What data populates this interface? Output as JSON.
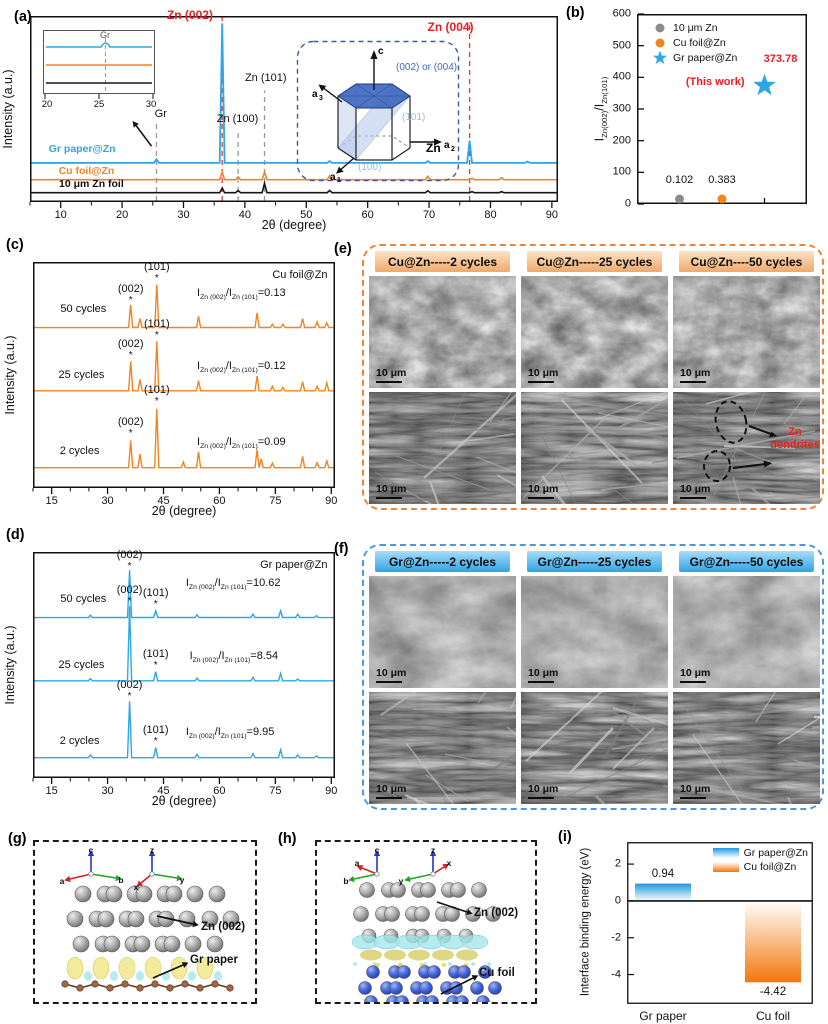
{
  "accent_colors": {
    "blue": "#2EA7E8",
    "orange": "#F5831F",
    "red": "#EC1C24",
    "gray": "#8C8C8C",
    "navy_dash": "#3A5BA0"
  },
  "panels": {
    "a": {
      "tag": "(a)",
      "xlabel": "2θ (degree)",
      "ylabel": "Intensity (a.u.)",
      "inset": {
        "ticks": [
          "20",
          "25",
          "30"
        ],
        "peak_label": "Gr"
      },
      "hex": {
        "c": "c",
        "a1": "a",
        "a1_sub": "1",
        "a2": "a",
        "a2_sub": "2",
        "a3": "a",
        "a3_sub": "3",
        "plane_top": "(002) or (004)",
        "plane_mid": "(101)",
        "plane_bottom": "(100)",
        "name": "Zn"
      }
    },
    "b": {
      "tag": "(b)"
    },
    "c": {
      "tag": "(c)",
      "xlabel": "2θ (degree)",
      "ylabel": "Intensity (a.u.)"
    },
    "d": {
      "tag": "(d)",
      "xlabel": "2θ (degree)",
      "ylabel": "Intensity (a.u.)"
    },
    "e": {
      "tag": "(e)",
      "headers": [
        "Cu@Zn-----2 cycles",
        "Cu@Zn-----25 cycles",
        "Cu@Zn----50 cycles"
      ],
      "scalebar": "10 μm",
      "dendrite_label": "Zn dendrites"
    },
    "f": {
      "tag": "(f)",
      "headers": [
        "Gr@Zn-----2 cycles",
        "Gr@Zn-----25 cycles",
        "Gr@Zn-----50 cycles"
      ],
      "scalebar": "10 μm"
    },
    "g": {
      "tag": "(g)",
      "axes1": [
        "c",
        "a",
        "b"
      ],
      "axes2": [
        "z",
        "x",
        "y"
      ],
      "label_zn": "Zn (002)",
      "label_sub": "Gr paper"
    },
    "h": {
      "tag": "(h)",
      "axes1": [
        "c",
        "b",
        "a"
      ],
      "axes2": [
        "z",
        "y",
        "x"
      ],
      "label_zn": "Zn (002)",
      "label_sub": "Cu foil"
    },
    "i": {
      "tag": "(i)",
      "ylabel": "Interface binding energy (eV)"
    }
  },
  "model_colors": {
    "zn_atom": "#ABABAB",
    "cu_atom": "#4663D8",
    "carbon_atom": "#A06848",
    "charge_gain": "#F0EA96",
    "charge_loss": "#A5E6EA"
  },
  "chart_data": [
    {
      "id": "a",
      "type": "line",
      "xlabel": "2θ (degree)",
      "ylabel": "Intensity (a.u.)",
      "xlim": [
        5,
        91
      ],
      "xticks": [
        10,
        20,
        30,
        40,
        50,
        60,
        70,
        80,
        90
      ],
      "minor_step": 5,
      "peak_halfwidth": 0.4,
      "series": [
        {
          "name": "Gr paper@Zn",
          "color": "#2EA7E8",
          "width": 1.8,
          "offset": 21,
          "peaks": [
            [
              25.6,
              2
            ],
            [
              36.3,
              75
            ],
            [
              53.8,
              1
            ],
            [
              69.8,
              1
            ],
            [
              76.6,
              12
            ],
            [
              86,
              0.8
            ]
          ]
        },
        {
          "name": "Cu foil@Zn",
          "color": "#F5831F",
          "width": 1.6,
          "offset": 12,
          "peaks": [
            [
              36.3,
              4
            ],
            [
              38.9,
              1.5
            ],
            [
              43.2,
              4
            ],
            [
              53.8,
              2
            ],
            [
              69.8,
              1.8
            ],
            [
              77,
              0.8
            ],
            [
              81.8,
              1
            ]
          ]
        },
        {
          "name": "10 μm Zn foil",
          "color": "#161616",
          "width": 1.6,
          "offset": 5,
          "peaks": [
            [
              36.3,
              2.5
            ],
            [
              38.9,
              1.2
            ],
            [
              43.2,
              5
            ],
            [
              53.8,
              1.2
            ],
            [
              69.8,
              1
            ],
            [
              77,
              0.6
            ],
            [
              81.8,
              0.6
            ]
          ]
        }
      ],
      "vlines": [
        {
          "x": 25.6,
          "color": "#999999",
          "u_top": 42
        },
        {
          "x": 36.3,
          "color": "#E8352C",
          "u_top": 100
        },
        {
          "x": 38.9,
          "color": "#999999",
          "u_top": 39
        },
        {
          "x": 43.2,
          "color": "#999999",
          "u_top": 60
        },
        {
          "x": 76.6,
          "color": "#E8352C",
          "u_top": 95
        }
      ],
      "annotations": [
        {
          "x": 34.8,
          "u": 99,
          "html": "Zn (002)",
          "color": "#EC1C24",
          "bold": true,
          "size": 12,
          "anchor": "end"
        },
        {
          "x": 73.5,
          "u": 93,
          "html": "Zn (004)",
          "color": "#EC1C24",
          "bold": true,
          "size": 12,
          "anchor": "middle"
        },
        {
          "x": 38.8,
          "u": 43,
          "html": "Zn (100)",
          "size": 11,
          "anchor": "middle"
        },
        {
          "x": 43.4,
          "u": 65,
          "html": "Zn (101)",
          "size": 11,
          "anchor": "middle"
        },
        {
          "x": 26.3,
          "u": 46,
          "html": "Gr",
          "size": 11,
          "anchor": "middle"
        },
        {
          "x": 13.5,
          "u": 27,
          "html": "Gr paper@Zn",
          "color": "#2EA7E8",
          "bold": true,
          "size": 10.5,
          "anchor": "middle"
        },
        {
          "x": 14.2,
          "u": 15.5,
          "html": "Cu foil@Zn",
          "color": "#F5831F",
          "bold": true,
          "size": 10.5,
          "anchor": "middle"
        },
        {
          "x": 15,
          "u": 8.5,
          "html": "10 μm Zn foil",
          "color": "#111111",
          "bold": true,
          "size": 10.5,
          "anchor": "middle"
        }
      ],
      "arrow": {
        "x1": 24.8,
        "u1": 30,
        "x2": 22.3,
        "u2": 41
      },
      "inset": {
        "xlim": [
          20,
          30
        ],
        "xticks": [
          20,
          25,
          30
        ],
        "gr_peak_x": 25.6
      }
    },
    {
      "id": "b",
      "type": "scatter",
      "ylabel_html": "I<sub>Zn(002)</sub>/I<sub>Zn(101)</sub>",
      "ylim": [
        0,
        600
      ],
      "yticks": [
        0,
        100,
        200,
        300,
        400,
        500,
        600
      ],
      "xlim": [
        0,
        4
      ],
      "points": [
        {
          "name": "10 μm Zn",
          "x": 1,
          "y": 0.102,
          "marker": "circle",
          "color": "#8C8C8C",
          "value_label": "0.102"
        },
        {
          "name": "Cu foil@Zn",
          "x": 2,
          "y": 0.383,
          "marker": "circle",
          "color": "#F5831F",
          "value_label": "0.383"
        },
        {
          "name": "Gr paper@Zn",
          "x": 3,
          "y": 373.78,
          "marker": "star",
          "color": "#2EA7E8",
          "value_label": "373.78",
          "value_color": "#EC1C24"
        }
      ],
      "annotation": {
        "text": "(This work)",
        "color": "#EC1C24"
      },
      "legend": [
        {
          "label": "10 μm Zn",
          "marker": "circle",
          "color": "#8C8C8C"
        },
        {
          "label": "Cu foil@Zn",
          "marker": "circle",
          "color": "#F5831F"
        },
        {
          "label": "Gr paper@Zn",
          "marker": "star",
          "color": "#2EA7E8"
        }
      ]
    },
    {
      "id": "c",
      "type": "line",
      "xlabel": "2θ (degree)",
      "ylabel": "Intensity (a.u.)",
      "xlim": [
        10,
        91
      ],
      "xticks": [
        15,
        30,
        45,
        60,
        75,
        90
      ],
      "minor_step": 5,
      "peak_halfwidth": 0.55,
      "series": [
        {
          "name": "2 cycles",
          "color": "#F5831F",
          "width": 1.4,
          "offset": 9,
          "peaks": [
            [
              36.2,
              12
            ],
            [
              38.7,
              6
            ],
            [
              43.2,
              26
            ],
            [
              50.3,
              2.5
            ],
            [
              54.4,
              7
            ],
            [
              70.1,
              8
            ],
            [
              71.2,
              4
            ],
            [
              74.2,
              2
            ],
            [
              82.3,
              5
            ],
            [
              86.2,
              2.2
            ],
            [
              88.8,
              3
            ]
          ]
        },
        {
          "name": "25 cycles",
          "color": "#F5831F",
          "width": 1.4,
          "offset": 43,
          "peaks": [
            [
              36.2,
              13
            ],
            [
              38.7,
              5
            ],
            [
              43.2,
              22
            ],
            [
              54.4,
              4.5
            ],
            [
              70.1,
              6.5
            ],
            [
              74.2,
              2
            ],
            [
              77,
              1.5
            ],
            [
              82.3,
              4
            ],
            [
              86.2,
              2
            ],
            [
              88.8,
              3.5
            ]
          ]
        },
        {
          "name": "50 cycles",
          "color": "#F5831F",
          "width": 1.4,
          "offset": 71,
          "peaks": [
            [
              36.2,
              10
            ],
            [
              38.7,
              4
            ],
            [
              43.2,
              19
            ],
            [
              54.4,
              5
            ],
            [
              70.1,
              6.5
            ],
            [
              74.2,
              1.5
            ],
            [
              77,
              1.5
            ],
            [
              82.3,
              4
            ],
            [
              86.2,
              2.5
            ],
            [
              88.8,
              2
            ]
          ]
        }
      ],
      "annotations": [
        {
          "x": 22.5,
          "u": 15,
          "html": "2 cycles",
          "size": 11,
          "anchor": "middle"
        },
        {
          "x": 23,
          "u": 49,
          "html": "25 cycles",
          "size": 11,
          "anchor": "middle"
        },
        {
          "x": 23.5,
          "u": 78,
          "html": "50 cycles",
          "size": 11,
          "anchor": "middle"
        },
        {
          "x": 54,
          "u": 19,
          "html": "I<sub>Zn (002)</sub>/I<sub>Zn (101)</sub>=0.09",
          "size": 11,
          "anchor": "start"
        },
        {
          "x": 54,
          "u": 53,
          "html": "I<sub>Zn (002)</sub>/I<sub>Zn (101)</sub>=0.12",
          "size": 11,
          "anchor": "start"
        },
        {
          "x": 54,
          "u": 85,
          "html": "I<sub>Zn (002)</sub>/I<sub>Zn (101)</sub>=0.13",
          "size": 11,
          "anchor": "start"
        },
        {
          "x": 36.2,
          "u": 28,
          "html": "(002)",
          "size": 11,
          "anchor": "middle"
        },
        {
          "x": 36.2,
          "u": 23,
          "html": "*",
          "size": 10,
          "anchor": "middle"
        },
        {
          "x": 43.2,
          "u": 42,
          "html": "(101)",
          "size": 11,
          "anchor": "middle"
        },
        {
          "x": 43.2,
          "u": 37,
          "html": "*",
          "size": 10,
          "anchor": "middle"
        },
        {
          "x": 36.2,
          "u": 62.5,
          "html": "(002)",
          "size": 11,
          "anchor": "middle"
        },
        {
          "x": 36.2,
          "u": 57.5,
          "html": "*",
          "size": 10,
          "anchor": "middle"
        },
        {
          "x": 43.2,
          "u": 71.5,
          "html": "(101)",
          "size": 11,
          "anchor": "middle"
        },
        {
          "x": 43.2,
          "u": 66.5,
          "html": "*",
          "size": 10,
          "anchor": "middle"
        },
        {
          "x": 36.2,
          "u": 87,
          "html": "(002)",
          "size": 11,
          "anchor": "middle"
        },
        {
          "x": 36.2,
          "u": 82,
          "html": "*",
          "size": 10,
          "anchor": "middle"
        },
        {
          "x": 43.2,
          "u": 96.5,
          "html": "(101)",
          "size": 11,
          "anchor": "middle"
        },
        {
          "x": 43.2,
          "u": 91.5,
          "html": "*",
          "size": 10,
          "anchor": "middle"
        },
        {
          "x": 89,
          "u": 93,
          "html": "Cu foil@Zn",
          "size": 11,
          "anchor": "end"
        }
      ]
    },
    {
      "id": "d",
      "type": "line",
      "xlabel": "2θ (degree)",
      "ylabel": "Intensity (a.u.)",
      "xlim": [
        10,
        91
      ],
      "xticks": [
        15,
        30,
        45,
        60,
        75,
        90
      ],
      "minor_step": 5,
      "peak_halfwidth": 0.55,
      "series": [
        {
          "name": "2 cycles",
          "color": "#2EA7E8",
          "width": 1.4,
          "offset": 9,
          "peaks": [
            [
              25.4,
              1.2
            ],
            [
              35.9,
              25
            ],
            [
              42.9,
              4.5
            ],
            [
              54,
              1.5
            ],
            [
              69,
              1.8
            ],
            [
              76.4,
              3.5
            ],
            [
              81,
              1.2
            ],
            [
              86,
              0.8
            ]
          ]
        },
        {
          "name": "25 cycles",
          "color": "#2EA7E8",
          "width": 1.4,
          "offset": 43,
          "peaks": [
            [
              25.4,
              1
            ],
            [
              35.9,
              33
            ],
            [
              42.9,
              4
            ],
            [
              54,
              1.2
            ],
            [
              69,
              1.5
            ],
            [
              76.4,
              3.2
            ],
            [
              81,
              0.8
            ]
          ]
        },
        {
          "name": "50 cycles",
          "color": "#2EA7E8",
          "width": 1.4,
          "offset": 71,
          "peaks": [
            [
              25.4,
              1
            ],
            [
              35.9,
              21
            ],
            [
              42.9,
              3
            ],
            [
              54,
              1.2
            ],
            [
              69,
              1.5
            ],
            [
              76.4,
              3
            ],
            [
              81,
              1.5
            ],
            [
              86,
              0.8
            ]
          ]
        }
      ],
      "annotations": [
        {
          "x": 22.5,
          "u": 15,
          "html": "2 cycles",
          "size": 11,
          "anchor": "middle"
        },
        {
          "x": 23,
          "u": 49,
          "html": "25 cycles",
          "size": 11,
          "anchor": "middle"
        },
        {
          "x": 23.5,
          "u": 78,
          "html": "50 cycles",
          "size": 11,
          "anchor": "middle"
        },
        {
          "x": 51,
          "u": 19,
          "html": "I<sub>Zn (002)</sub>/I<sub>Zn (101)</sub>=9.95",
          "size": 11,
          "anchor": "start"
        },
        {
          "x": 52,
          "u": 53,
          "html": "I<sub>Zn (002)</sub>/I<sub>Zn (101)</sub>=8.54",
          "size": 11,
          "anchor": "start"
        },
        {
          "x": 51,
          "u": 85,
          "html": "I<sub>Zn (002)</sub>/I<sub>Zn (101)</sub>=10.62",
          "size": 11,
          "anchor": "start"
        },
        {
          "x": 35.9,
          "u": 40,
          "html": "(002)",
          "size": 11,
          "anchor": "middle"
        },
        {
          "x": 35.9,
          "u": 35,
          "html": "*",
          "size": 10,
          "anchor": "middle"
        },
        {
          "x": 42.9,
          "u": 20,
          "html": "(101)",
          "size": 11,
          "anchor": "middle"
        },
        {
          "x": 42.9,
          "u": 15,
          "html": "*",
          "size": 10,
          "anchor": "middle"
        },
        {
          "x": 35.9,
          "u": 82,
          "html": "(002)",
          "size": 11,
          "anchor": "middle"
        },
        {
          "x": 35.9,
          "u": 77,
          "html": "*",
          "size": 10,
          "anchor": "middle"
        },
        {
          "x": 42.9,
          "u": 53.5,
          "html": "(101)",
          "size": 11,
          "anchor": "middle"
        },
        {
          "x": 42.9,
          "u": 48.5,
          "html": "*",
          "size": 10,
          "anchor": "middle"
        },
        {
          "x": 35.9,
          "u": 97.5,
          "html": "(002)",
          "size": 11,
          "anchor": "middle"
        },
        {
          "x": 35.9,
          "u": 92.5,
          "html": "*",
          "size": 10,
          "anchor": "middle"
        },
        {
          "x": 42.9,
          "u": 80.5,
          "html": "(101)",
          "size": 11,
          "anchor": "middle"
        },
        {
          "x": 42.9,
          "u": 75.5,
          "html": "*",
          "size": 10,
          "anchor": "middle"
        },
        {
          "x": 89,
          "u": 93,
          "html": "Gr paper@Zn",
          "size": 11,
          "anchor": "end"
        }
      ]
    },
    {
      "id": "i",
      "type": "bar",
      "ylabel": "Interface binding energy (eV)",
      "ylim": [
        -5.6,
        3.2
      ],
      "yticks": [
        2,
        0,
        -2,
        -4
      ],
      "categories": [
        "Gr paper",
        "Cu foil"
      ],
      "values": [
        0.94,
        -4.42
      ],
      "value_labels": [
        "0.94",
        "-4.42"
      ],
      "bars": [
        {
          "color_top": "#1F97E0",
          "color_bottom": "#FFFFFF"
        },
        {
          "color_top": "#FFFFFF",
          "color_bottom": "#F2770A"
        }
      ],
      "legend": [
        {
          "label": "Gr paper@Zn",
          "css": "linear-gradient(180deg,#1F97E0,#FFFFFF)"
        },
        {
          "label": "Cu foil@Zn",
          "css": "linear-gradient(180deg,#FFFFFF,#F2770A)"
        }
      ]
    }
  ]
}
